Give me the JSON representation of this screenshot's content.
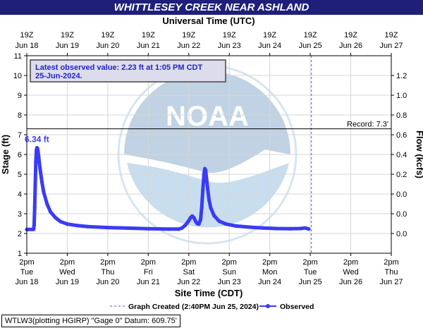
{
  "title": "WHITTLESEY CREEK NEAR ASHLAND",
  "footer_text": "WTLW3(plotting HGIRP) \"Gage 0\" Datum: 609.75'",
  "chart_data": {
    "type": "line",
    "top_axis_title": "Universal Time (UTC)",
    "xlabel": "Site Time (CDT)",
    "ylabel_left": "Stage (ft)",
    "ylabel_right": "Flow (kcfs)",
    "x_range": [
      "2024-06-18 14:00",
      "2024-06-27 14:00"
    ],
    "y_range": [
      1,
      11
    ],
    "top_ticks": [
      {
        "line1": "19Z",
        "line2": "Jun 18"
      },
      {
        "line1": "19Z",
        "line2": "Jun 19"
      },
      {
        "line1": "19Z",
        "line2": "Jun 20"
      },
      {
        "line1": "19Z",
        "line2": "Jun 21"
      },
      {
        "line1": "19Z",
        "line2": "Jun 22"
      },
      {
        "line1": "19Z",
        "line2": "Jun 23"
      },
      {
        "line1": "19Z",
        "line2": "Jun 24"
      },
      {
        "line1": "19Z",
        "line2": "Jun 25"
      },
      {
        "line1": "19Z",
        "line2": "Jun 26"
      },
      {
        "line1": "19Z",
        "line2": "Jun 27"
      }
    ],
    "bottom_ticks": [
      {
        "line1": "2pm",
        "line2": "Tue",
        "line3": "Jun 18"
      },
      {
        "line1": "2pm",
        "line2": "Wed",
        "line3": "Jun 19"
      },
      {
        "line1": "2pm",
        "line2": "Thu",
        "line3": "Jun 20"
      },
      {
        "line1": "2pm",
        "line2": "Fri",
        "line3": "Jun 21"
      },
      {
        "line1": "2pm",
        "line2": "Sat",
        "line3": "Jun 22"
      },
      {
        "line1": "2pm",
        "line2": "Sun",
        "line3": "Jun 23"
      },
      {
        "line1": "2pm",
        "line2": "Mon",
        "line3": "Jun 24"
      },
      {
        "line1": "2pm",
        "line2": "Tue",
        "line3": "Jun 25"
      },
      {
        "line1": "2pm",
        "line2": "Wed",
        "line3": "Jun 26"
      },
      {
        "line1": "2pm",
        "line2": "Thu",
        "line3": "Jun 27"
      }
    ],
    "left_ticks": [
      "1",
      "2",
      "3",
      "4",
      "5",
      "6",
      "7",
      "8",
      "9",
      "10",
      "11"
    ],
    "right_ticks": [
      {
        "stage": 2.0,
        "label": "0.0"
      },
      {
        "stage": 3.0,
        "label": "0.0"
      },
      {
        "stage": 4.0,
        "label": "0.0"
      },
      {
        "stage": 5.0,
        "label": "0.2"
      },
      {
        "stage": 6.0,
        "label": "0.4"
      },
      {
        "stage": 7.0,
        "label": "0.6"
      },
      {
        "stage": 8.0,
        "label": "0.8"
      },
      {
        "stage": 9.0,
        "label": "1.0"
      },
      {
        "stage": 10.0,
        "label": "1.2"
      }
    ],
    "record_stage": 7.3,
    "record_label": "Record: 7.3'",
    "graph_created_x": "2024-06-25 14:40",
    "peak_label": "6.34 ft",
    "peak": {
      "x": "2024-06-18 20:00",
      "y": 6.34
    },
    "latest_value_line1": "Latest observed value: 2.23 ft at 1:05 PM CDT",
    "latest_value_line2": "25-Jun-2024.",
    "legend": {
      "created": "Graph Created (2:40PM Jun 25, 2024)",
      "observed": "Observed"
    },
    "series": [
      {
        "name": "Observed",
        "color": "#3b3bf5",
        "points": [
          [
            "2024-06-18 14:00",
            2.2
          ],
          [
            "2024-06-18 18:00",
            2.21
          ],
          [
            "2024-06-18 18:20",
            2.4
          ],
          [
            "2024-06-18 18:40",
            3.3
          ],
          [
            "2024-06-18 19:00",
            4.5
          ],
          [
            "2024-06-18 19:20",
            5.6
          ],
          [
            "2024-06-18 19:40",
            6.2
          ],
          [
            "2024-06-18 20:00",
            6.34
          ],
          [
            "2024-06-18 20:20",
            6.3
          ],
          [
            "2024-06-18 20:40",
            6.15
          ],
          [
            "2024-06-18 21:00",
            5.9
          ],
          [
            "2024-06-18 22:00",
            5.2
          ],
          [
            "2024-06-18 23:00",
            4.6
          ],
          [
            "2024-06-19 00:00",
            4.1
          ],
          [
            "2024-06-19 02:00",
            3.5
          ],
          [
            "2024-06-19 04:00",
            3.1
          ],
          [
            "2024-06-19 07:00",
            2.8
          ],
          [
            "2024-06-19 10:00",
            2.6
          ],
          [
            "2024-06-19 14:00",
            2.48
          ],
          [
            "2024-06-19 20:00",
            2.4
          ],
          [
            "2024-06-20 02:00",
            2.35
          ],
          [
            "2024-06-20 14:00",
            2.3
          ],
          [
            "2024-06-21 02:00",
            2.27
          ],
          [
            "2024-06-21 14:00",
            2.24
          ],
          [
            "2024-06-22 02:00",
            2.22
          ],
          [
            "2024-06-22 08:00",
            2.22
          ],
          [
            "2024-06-22 10:00",
            2.28
          ],
          [
            "2024-06-22 12:00",
            2.42
          ],
          [
            "2024-06-22 14:00",
            2.65
          ],
          [
            "2024-06-22 15:00",
            2.8
          ],
          [
            "2024-06-22 16:00",
            2.88
          ],
          [
            "2024-06-22 17:00",
            2.8
          ],
          [
            "2024-06-22 18:00",
            2.62
          ],
          [
            "2024-06-22 19:00",
            2.5
          ],
          [
            "2024-06-22 20:00",
            2.48
          ],
          [
            "2024-06-22 21:00",
            2.7
          ],
          [
            "2024-06-22 21:40",
            3.3
          ],
          [
            "2024-06-22 22:20",
            4.2
          ],
          [
            "2024-06-22 23:00",
            5.0
          ],
          [
            "2024-06-22 23:30",
            5.28
          ],
          [
            "2024-06-23 00:00",
            5.2
          ],
          [
            "2024-06-23 00:30",
            4.8
          ],
          [
            "2024-06-23 01:00",
            4.4
          ],
          [
            "2024-06-23 02:00",
            3.7
          ],
          [
            "2024-06-23 03:00",
            3.3
          ],
          [
            "2024-06-23 05:00",
            2.9
          ],
          [
            "2024-06-23 08:00",
            2.62
          ],
          [
            "2024-06-23 12:00",
            2.48
          ],
          [
            "2024-06-23 18:00",
            2.38
          ],
          [
            "2024-06-24 02:00",
            2.32
          ],
          [
            "2024-06-24 10:00",
            2.28
          ],
          [
            "2024-06-24 18:00",
            2.25
          ],
          [
            "2024-06-25 02:00",
            2.24
          ],
          [
            "2024-06-25 08:00",
            2.25
          ],
          [
            "2024-06-25 11:00",
            2.28
          ],
          [
            "2024-06-25 13:05",
            2.23
          ]
        ]
      }
    ]
  }
}
